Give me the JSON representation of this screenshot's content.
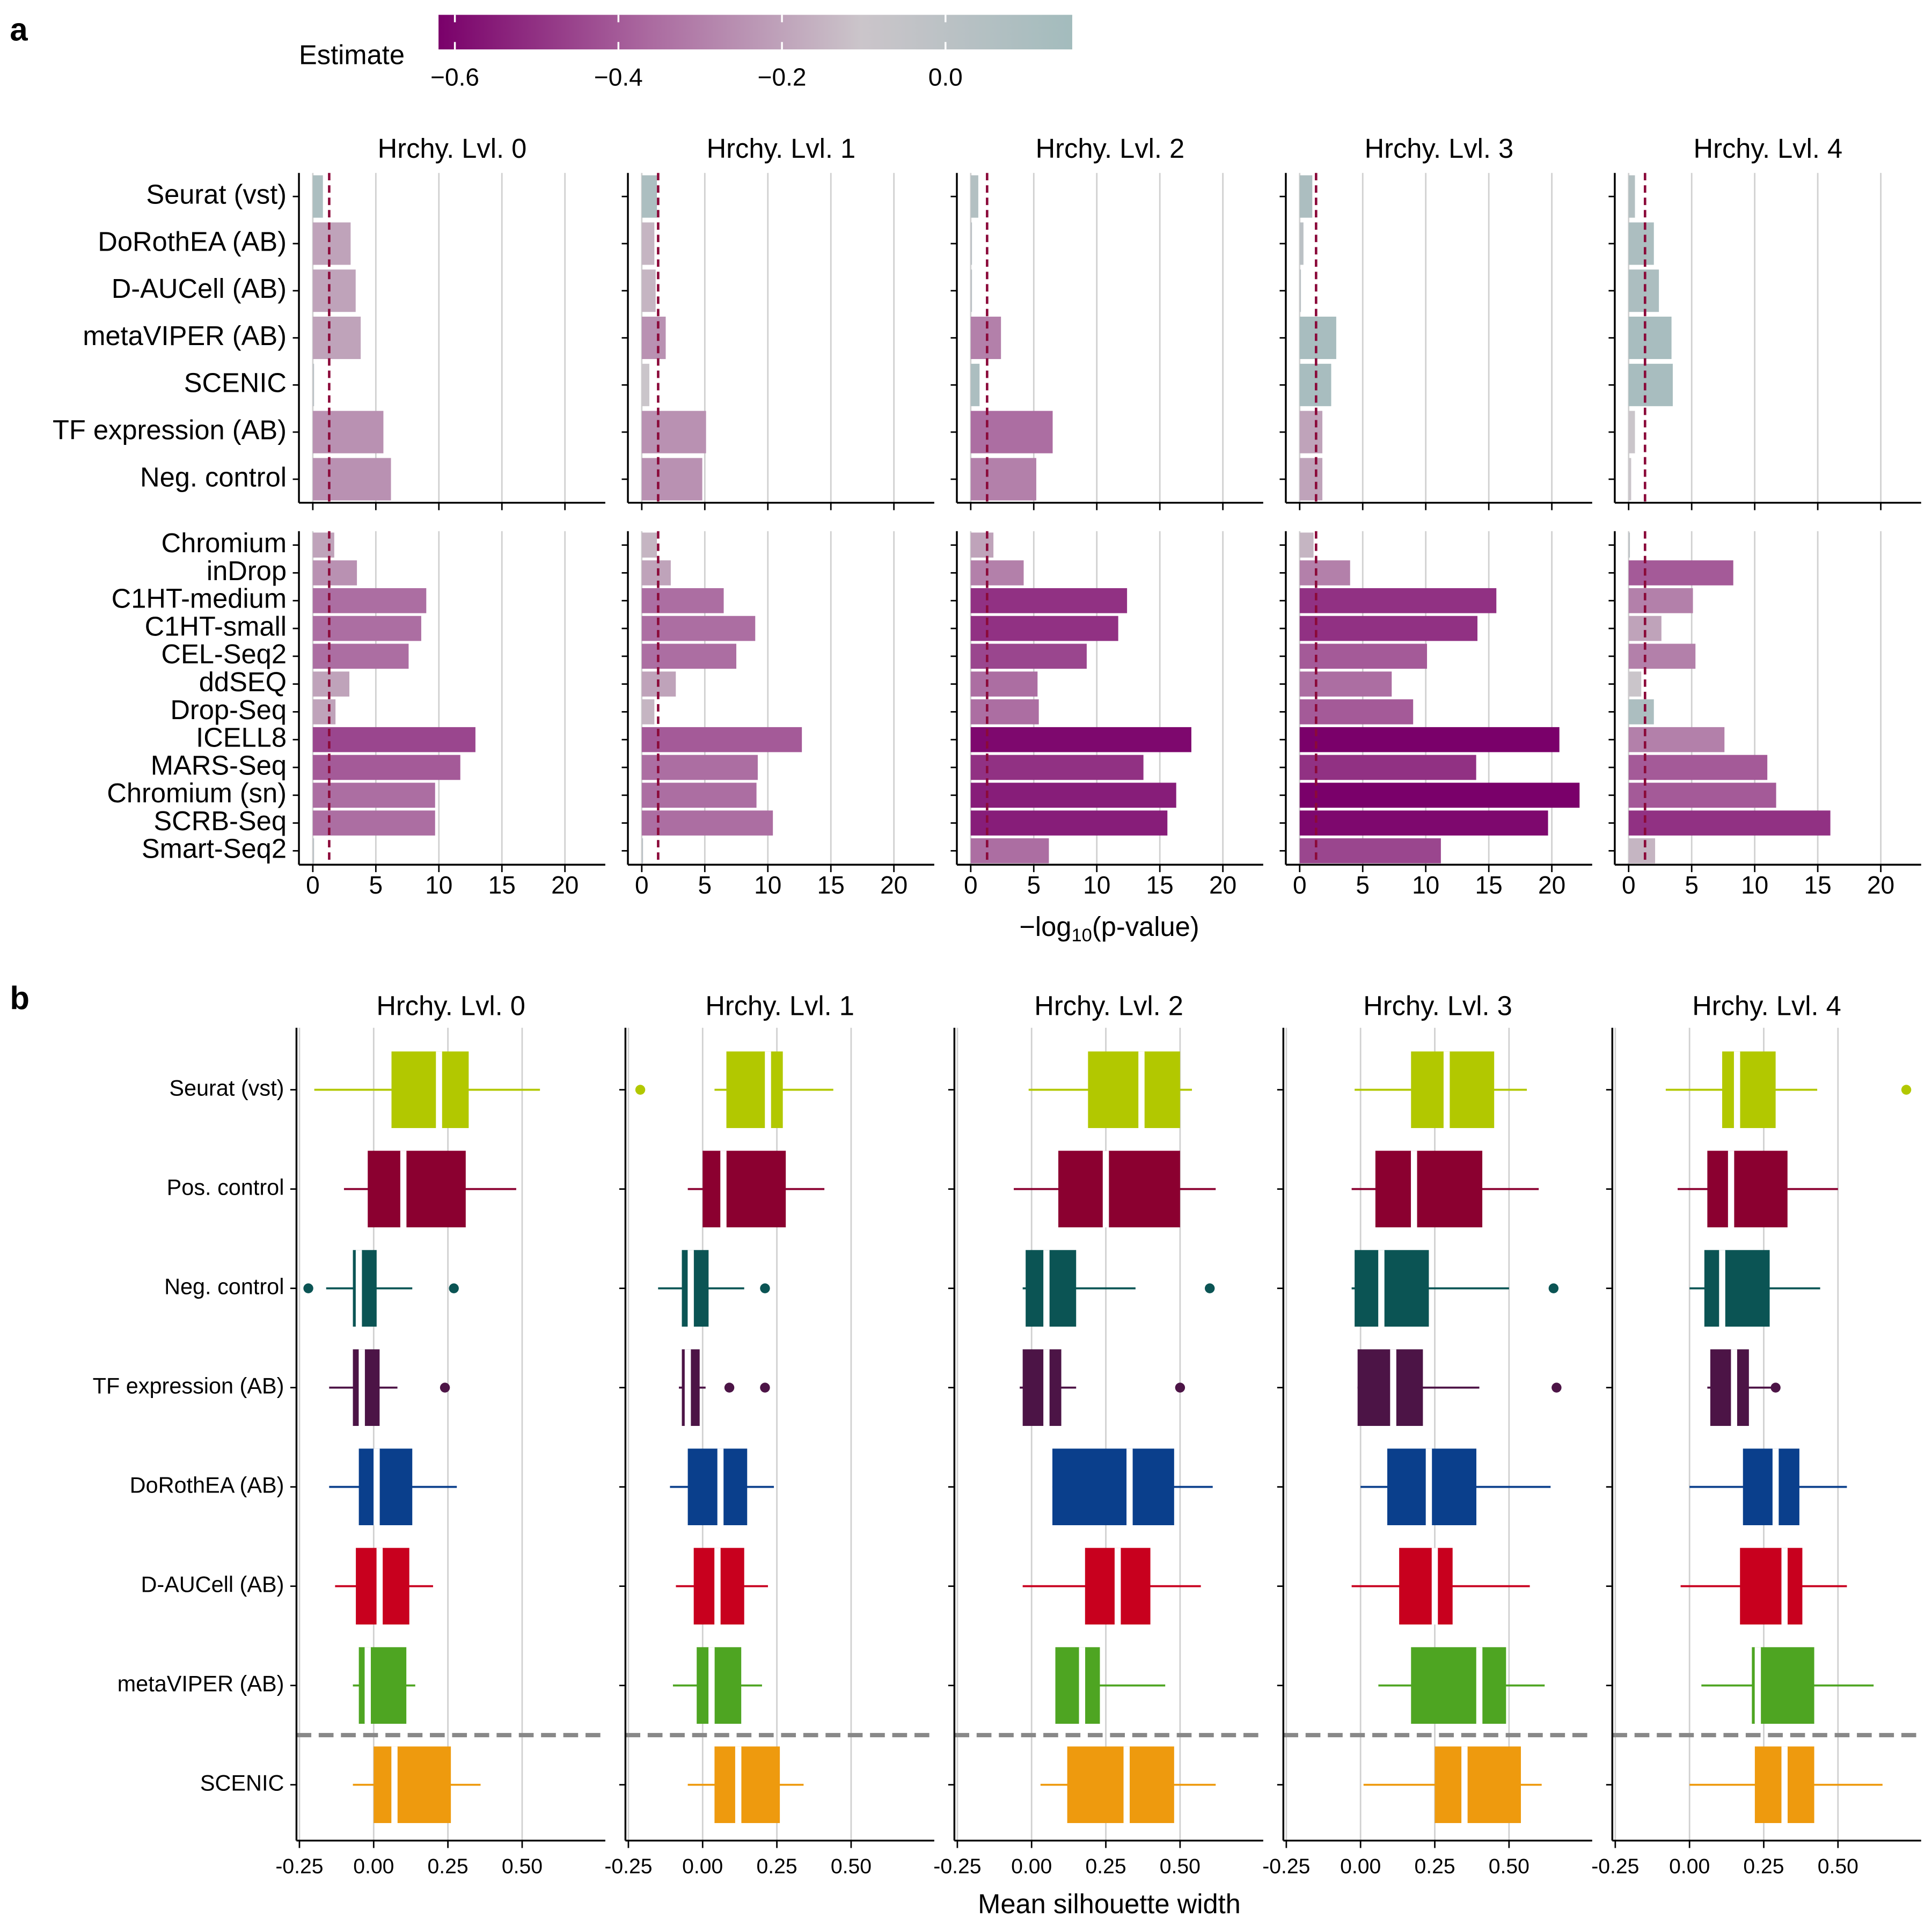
{
  "chart_data": [
    {
      "type": "bar",
      "label": "a",
      "legend_title": "Estimate",
      "color_lim": [
        -0.62,
        0.155
      ],
      "colors": [
        "#7a006a",
        "#ab6aa0",
        "#cbc5ca",
        "#a3bcbd"
      ],
      "color_ticks": [
        {
          "value": -0.6,
          "label": "−0.6"
        },
        {
          "value": -0.4,
          "label": "−0.4"
        },
        {
          "value": -0.2,
          "label": "−0.2"
        },
        {
          "value": 0,
          "label": "0.0"
        }
      ],
      "facets": [
        "Hrchy. Lvl. 0",
        "Hrchy. Lvl. 1",
        "Hrchy. Lvl. 2",
        "Hrchy. Lvl. 3",
        "Hrchy. Lvl. 4"
      ],
      "xlabel": {
        "prefix": "−log",
        "sub": "10",
        "suffix": "(p-value)"
      },
      "xlim": [
        -1.1,
        23.2
      ],
      "xticks": [
        0,
        5,
        10,
        15,
        20
      ],
      "grid": true,
      "threshold": 1.3,
      "groups": [
        {
          "categories": [
            "Seurat (vst)",
            "DoRothEA (AB)",
            "D-AUCell (AB)",
            "metaVIPER (AB)",
            "SCENIC",
            "TF expression (AB)",
            "Neg. control"
          ],
          "values": [
            [
              0.8,
              3.0,
              3.4,
              3.8,
              0.1,
              5.6,
              6.2
            ],
            [
              1.2,
              1.0,
              1.1,
              1.9,
              0.6,
              5.1,
              4.8
            ],
            [
              0.6,
              0.1,
              0.1,
              2.4,
              0.7,
              6.5,
              5.2
            ],
            [
              1.0,
              0.3,
              0.1,
              2.9,
              2.5,
              1.8,
              1.8
            ],
            [
              0.5,
              2.0,
              2.4,
              3.4,
              3.5,
              0.5,
              0.2
            ]
          ],
          "estimates": [
            [
              0.1,
              -0.2,
              -0.2,
              -0.2,
              0,
              -0.25,
              -0.25
            ],
            [
              0.1,
              -0.15,
              -0.15,
              -0.25,
              -0.1,
              -0.25,
              -0.25
            ],
            [
              0.05,
              0,
              0,
              -0.3,
              0.1,
              -0.35,
              -0.3
            ],
            [
              0.1,
              0,
              0,
              0.12,
              0.12,
              -0.2,
              -0.2
            ],
            [
              0.05,
              0.1,
              0.1,
              0.12,
              0.12,
              -0.1,
              -0.1
            ]
          ]
        },
        {
          "categories": [
            "Chromium",
            "inDrop",
            "C1HT-medium",
            "C1HT-small",
            "CEL-Seq2",
            "ddSEQ",
            "Drop-Seq",
            "ICELL8",
            "MARS-Seq",
            "Chromium (sn)",
            "SCRB-Seq",
            "Smart-Seq2"
          ],
          "values": [
            [
              1.7,
              3.5,
              9.0,
              8.6,
              7.6,
              2.9,
              1.8,
              12.9,
              11.7,
              9.7,
              9.7,
              0.1
            ],
            [
              1.2,
              2.3,
              6.5,
              9.0,
              7.5,
              2.7,
              1.0,
              12.7,
              9.2,
              9.1,
              10.4,
              0.1
            ],
            [
              1.8,
              4.2,
              12.4,
              11.7,
              9.2,
              5.3,
              5.4,
              17.5,
              13.7,
              16.3,
              15.6,
              6.2
            ],
            [
              1.1,
              4.0,
              15.6,
              14.1,
              10.1,
              7.3,
              9.0,
              20.6,
              14.0,
              22.2,
              19.7,
              11.2
            ],
            [
              0.1,
              8.3,
              5.1,
              2.6,
              5.3,
              1.0,
              2.0,
              7.6,
              11.0,
              11.7,
              16.0,
              2.1
            ]
          ],
          "estimates": [
            [
              -0.2,
              -0.25,
              -0.35,
              -0.35,
              -0.35,
              -0.2,
              -0.2,
              -0.45,
              -0.4,
              -0.35,
              -0.35,
              0
            ],
            [
              -0.15,
              -0.2,
              -0.35,
              -0.35,
              -0.35,
              -0.2,
              -0.15,
              -0.4,
              -0.35,
              -0.35,
              -0.35,
              0
            ],
            [
              -0.2,
              -0.3,
              -0.5,
              -0.5,
              -0.45,
              -0.35,
              -0.35,
              -0.6,
              -0.5,
              -0.55,
              -0.55,
              -0.35
            ],
            [
              -0.15,
              -0.3,
              -0.5,
              -0.5,
              -0.4,
              -0.35,
              -0.4,
              -0.63,
              -0.5,
              -0.63,
              -0.6,
              -0.45
            ],
            [
              0,
              -0.4,
              -0.3,
              -0.2,
              -0.3,
              -0.1,
              0.1,
              -0.3,
              -0.4,
              -0.4,
              -0.5,
              -0.15
            ]
          ]
        }
      ]
    },
    {
      "type": "box",
      "label": "b",
      "facets": [
        "Hrchy. Lvl. 0",
        "Hrchy. Lvl. 1",
        "Hrchy. Lvl. 2",
        "Hrchy. Lvl. 3",
        "Hrchy. Lvl. 4"
      ],
      "xlabel": "Mean silhouette width",
      "xlim": [
        -0.26,
        0.78
      ],
      "xticks": [
        {
          "value": -0.25,
          "label": "-0.25"
        },
        {
          "value": 0,
          "label": "0.00"
        },
        {
          "value": 0.25,
          "label": "0.25"
        },
        {
          "value": 0.5,
          "label": "0.50"
        }
      ],
      "grid": true,
      "categories": [
        "Seurat (vst)",
        "Pos. control",
        "Neg. control",
        "TF expression (AB)",
        "DoRothEA (AB)",
        "D-AUCell (AB)",
        "metaVIPER (AB)",
        "SCENIC"
      ],
      "colors": [
        "#b2c800",
        "#8b0030",
        "#0b5454",
        "#4c1446",
        "#0a3f8c",
        "#c8001e",
        "#4ea522",
        "#ee9a0e"
      ],
      "stats": [
        [
          [
            -0.2,
            0.06,
            0.22,
            0.32,
            0.56
          ],
          [
            -0.1,
            -0.02,
            0.1,
            0.31,
            0.48
          ],
          [
            -0.16,
            -0.07,
            -0.05,
            0.01,
            0.13
          ],
          [
            -0.15,
            -0.07,
            -0.04,
            0.02,
            0.08
          ],
          [
            -0.15,
            -0.05,
            0.01,
            0.13,
            0.28
          ],
          [
            -0.13,
            -0.06,
            0.02,
            0.12,
            0.2
          ],
          [
            -0.07,
            -0.05,
            -0.02,
            0.11,
            0.14
          ],
          [
            -0.07,
            0.0,
            0.07,
            0.26,
            0.36
          ]
        ],
        [
          [
            0.04,
            0.08,
            0.22,
            0.27,
            0.44
          ],
          [
            -0.05,
            0.0,
            0.07,
            0.28,
            0.41
          ],
          [
            -0.15,
            -0.07,
            -0.04,
            0.02,
            0.14
          ],
          [
            -0.08,
            -0.07,
            -0.05,
            -0.01,
            0.01
          ],
          [
            -0.11,
            -0.05,
            0.06,
            0.15,
            0.24
          ],
          [
            -0.09,
            -0.03,
            0.05,
            0.14,
            0.22
          ],
          [
            -0.1,
            -0.02,
            0.03,
            0.13,
            0.2
          ],
          [
            -0.05,
            0.04,
            0.12,
            0.26,
            0.34
          ]
        ],
        [
          [
            -0.01,
            0.19,
            0.37,
            0.5,
            0.54
          ],
          [
            -0.06,
            0.09,
            0.25,
            0.5,
            0.62
          ],
          [
            -0.03,
            -0.02,
            0.05,
            0.15,
            0.35
          ],
          [
            -0.04,
            -0.03,
            0.05,
            0.1,
            0.15
          ],
          [
            0.07,
            0.07,
            0.33,
            0.48,
            0.61
          ],
          [
            -0.03,
            0.18,
            0.29,
            0.4,
            0.57
          ],
          [
            0.08,
            0.08,
            0.17,
            0.23,
            0.45
          ],
          [
            0.03,
            0.12,
            0.32,
            0.48,
            0.62
          ]
        ],
        [
          [
            -0.02,
            0.17,
            0.29,
            0.45,
            0.56
          ],
          [
            -0.03,
            0.05,
            0.18,
            0.41,
            0.6
          ],
          [
            -0.03,
            -0.02,
            0.07,
            0.23,
            0.5
          ],
          [
            -0.01,
            -0.01,
            0.11,
            0.21,
            0.4
          ],
          [
            0.0,
            0.09,
            0.23,
            0.39,
            0.64
          ],
          [
            -0.03,
            0.13,
            0.25,
            0.31,
            0.57
          ],
          [
            0.06,
            0.17,
            0.4,
            0.49,
            0.62
          ],
          [
            0.01,
            0.25,
            0.35,
            0.54,
            0.61
          ]
        ],
        [
          [
            -0.08,
            0.11,
            0.16,
            0.29,
            0.43
          ],
          [
            -0.04,
            0.06,
            0.14,
            0.33,
            0.5
          ],
          [
            0.0,
            0.05,
            0.11,
            0.27,
            0.44
          ],
          [
            0.06,
            0.07,
            0.15,
            0.2,
            0.29
          ],
          [
            0.0,
            0.18,
            0.29,
            0.37,
            0.53
          ],
          [
            -0.03,
            0.17,
            0.32,
            0.38,
            0.53
          ],
          [
            0.04,
            0.21,
            0.23,
            0.42,
            0.62
          ],
          [
            0.0,
            0.22,
            0.32,
            0.42,
            0.65
          ]
        ]
      ],
      "outliers": [
        [
          [],
          [],
          [
            -0.22,
            0.27
          ],
          [
            0.24
          ],
          [],
          [],
          [],
          []
        ],
        [
          [
            -0.21
          ],
          [],
          [
            0.21
          ],
          [
            0.09,
            0.21
          ],
          [],
          [],
          [],
          []
        ],
        [
          [],
          [],
          [
            0.6
          ],
          [
            0.5
          ],
          [],
          [],
          [],
          []
        ],
        [
          [],
          [],
          [
            0.65
          ],
          [
            0.66
          ],
          [],
          [],
          [],
          []
        ],
        [
          [
            0.73
          ],
          [],
          [],
          [
            0.29
          ],
          [],
          [],
          [],
          []
        ]
      ]
    }
  ]
}
